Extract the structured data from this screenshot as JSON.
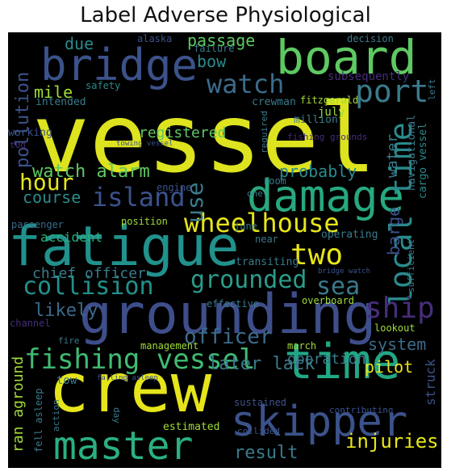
{
  "title": "Label Adverse Physiological",
  "colors": {
    "background": "#000000",
    "yellow": "#e6e51a",
    "green": "#5ec962",
    "teal": "#21918c",
    "blue": "#3b528b",
    "purple": "#472d7b",
    "lightgreen": "#a0da39"
  },
  "words": {
    "vessel": "vessel",
    "grounding": "grounding",
    "crew": "crew",
    "fatigue": "fatigue",
    "bridge": "bridge",
    "board": "board",
    "damage": "damage",
    "time": "time",
    "skipper": "skipper",
    "master": "master",
    "fishing_vessel": "fishing vessel",
    "wheelhouse": "wheelhouse",
    "collision": "collision",
    "island": "island",
    "grounded": "grounded",
    "hour": "hour",
    "watch": "watch",
    "port": "port",
    "local_time": "local time",
    "ship": "ship",
    "two": "two",
    "sea": "sea",
    "watch_alarm": "watch alarm",
    "passage": "passage",
    "mile": "mile",
    "use": "use",
    "pollution": "pollution",
    "officer": "officer",
    "later_lack": "later lack",
    "injuries": "injuries",
    "result": "result",
    "probably": "probably",
    "course": "course",
    "likely": "likely",
    "barge": "barge",
    "system": "system",
    "pilot": "pilot",
    "registered": "registered",
    "water": "water",
    "due": "due",
    "bow": "bow",
    "chief_officer": "chief officer",
    "ran_aground": "ran aground",
    "accident": "accident",
    "operation": "operation",
    "struck": "struck",
    "alaska": "alaska",
    "failure": "failure",
    "safety": "safety",
    "intended": "intended",
    "crewman": "crewman",
    "fitzgerald": "fitzgerald",
    "july": "july",
    "decision": "decision",
    "subsequently": "subsequently",
    "left": "left",
    "million": "million",
    "required": "required",
    "navigational": "navigational",
    "cargo_vessel": "cargo vessel",
    "towing_vessel": "towing vessel",
    "working": "working",
    "tug": "tug",
    "engine": "engine",
    "room": "room",
    "one": "one",
    "fishing_grounds": "fishing grounds",
    "passenger": "passenger",
    "position": "position",
    "june": "june",
    "near": "near",
    "operating": "operating",
    "transiting": "transiting",
    "bridge_watch": "bridge watch",
    "sufficient": "sufficient",
    "effective": "effective",
    "overboard": "overboard",
    "channel": "channel",
    "fire": "fire",
    "management": "management",
    "march": "march",
    "lookout": "lookout",
    "tow": "tow",
    "falling_asleep": "falling asleep",
    "fell_asleep": "fell asleep",
    "action": "action",
    "day": "day",
    "sustained": "sustained",
    "estimated": "estimated",
    "collided": "collided",
    "contributing": "contributing"
  }
}
